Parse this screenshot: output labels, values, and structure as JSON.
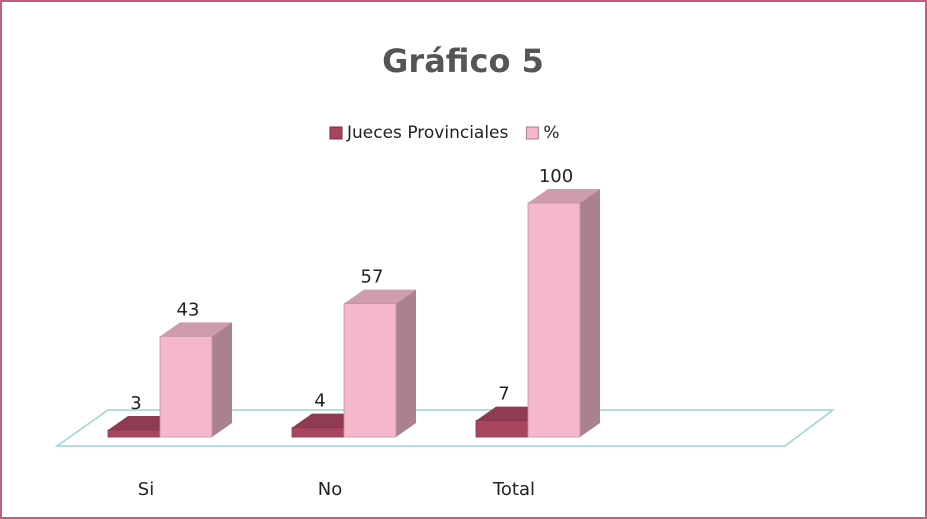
{
  "chart_data": {
    "type": "bar3d",
    "title": "Gráfico 5",
    "categories": [
      "Si",
      "No",
      "Total"
    ],
    "series": [
      {
        "name": "Jueces Provinciales",
        "color": "#a8455f",
        "values": [
          3,
          4,
          7
        ]
      },
      {
        "name": "%",
        "color": "#f4b8ca",
        "values": [
          43,
          57,
          100
        ]
      }
    ],
    "legend": "top"
  }
}
